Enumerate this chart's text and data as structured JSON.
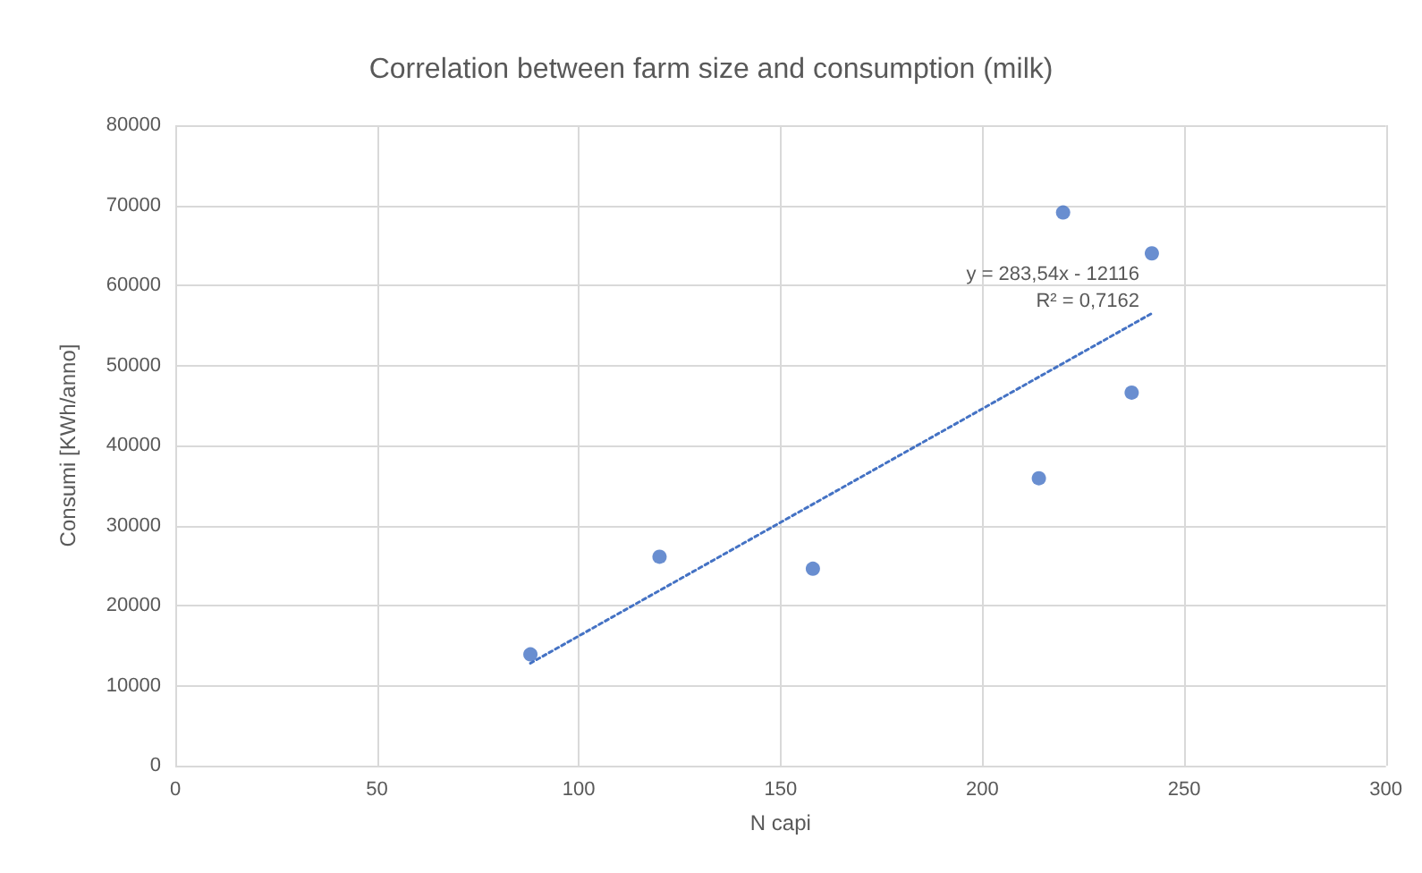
{
  "chart_data": {
    "type": "scatter",
    "title": "Correlation between farm size and consumption (milk)",
    "xlabel": "N capi",
    "ylabel": "Consumi [KWh/anno]",
    "series": [
      {
        "color": "#4472c4",
        "marker": "circle",
        "x": [
          88,
          120,
          158,
          214,
          220,
          237,
          242
        ],
        "values": [
          13900,
          26100,
          24600,
          35900,
          69100,
          46600,
          64000
        ]
      },
      {
        "type": "line",
        "color": "#4472c4",
        "line_style": "dotted",
        "marker": "none",
        "x": [
          88,
          242
        ],
        "values": [
          12800,
          56500
        ]
      }
    ],
    "annotations": [
      "y = 283,54x - 12116",
      "R² = 0,7162"
    ],
    "xlim": [
      0,
      300
    ],
    "xticks": [
      0,
      50,
      100,
      150,
      200,
      250,
      300
    ],
    "ylim": [
      0,
      80000
    ],
    "yticks": [
      0,
      10000,
      20000,
      30000,
      40000,
      50000,
      60000,
      70000,
      80000
    ],
    "grid": true
  }
}
